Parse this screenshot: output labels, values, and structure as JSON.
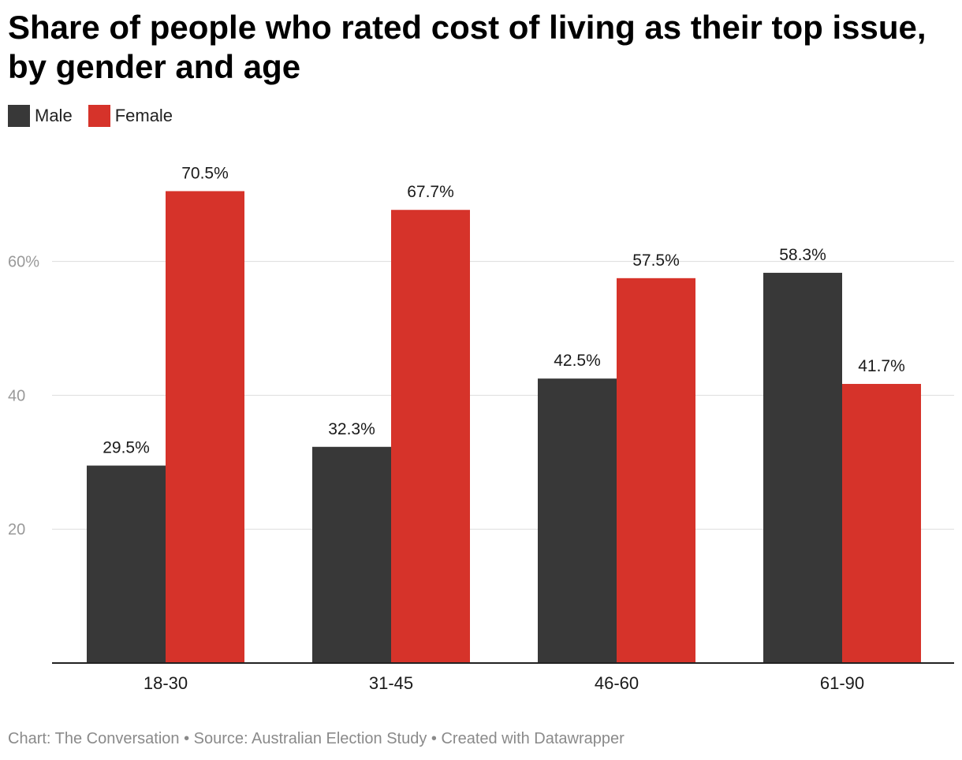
{
  "title": "Share of people who rated cost of living as their top issue, by gender and age",
  "footer": "Chart: The Conversation • Source: Australian Election Study • Created with Datawrapper",
  "colors": {
    "male": "#383838",
    "female": "#d6332a",
    "grid": "#dddddd",
    "axis": "#222222"
  },
  "chart_data": {
    "type": "bar",
    "title": "Share of people who rated cost of living as their top issue, by gender and age",
    "xlabel": "",
    "ylabel": "",
    "categories": [
      "18-30",
      "31-45",
      "46-60",
      "61-90"
    ],
    "series": [
      {
        "name": "Male",
        "color": "#383838",
        "values": [
          29.5,
          32.3,
          42.5,
          58.3
        ],
        "labels": [
          "29.5%",
          "32.3%",
          "42.5%",
          "58.3%"
        ]
      },
      {
        "name": "Female",
        "color": "#d6332a",
        "values": [
          70.5,
          67.7,
          57.5,
          41.7
        ],
        "labels": [
          "70.5%",
          "67.7%",
          "57.5%",
          "41.7%"
        ]
      }
    ],
    "yticks": [
      20,
      40,
      60
    ],
    "ytick_labels": [
      "20",
      "40",
      "60%"
    ],
    "ylim": [
      0,
      72
    ],
    "grid": true,
    "legend": "top-left"
  }
}
